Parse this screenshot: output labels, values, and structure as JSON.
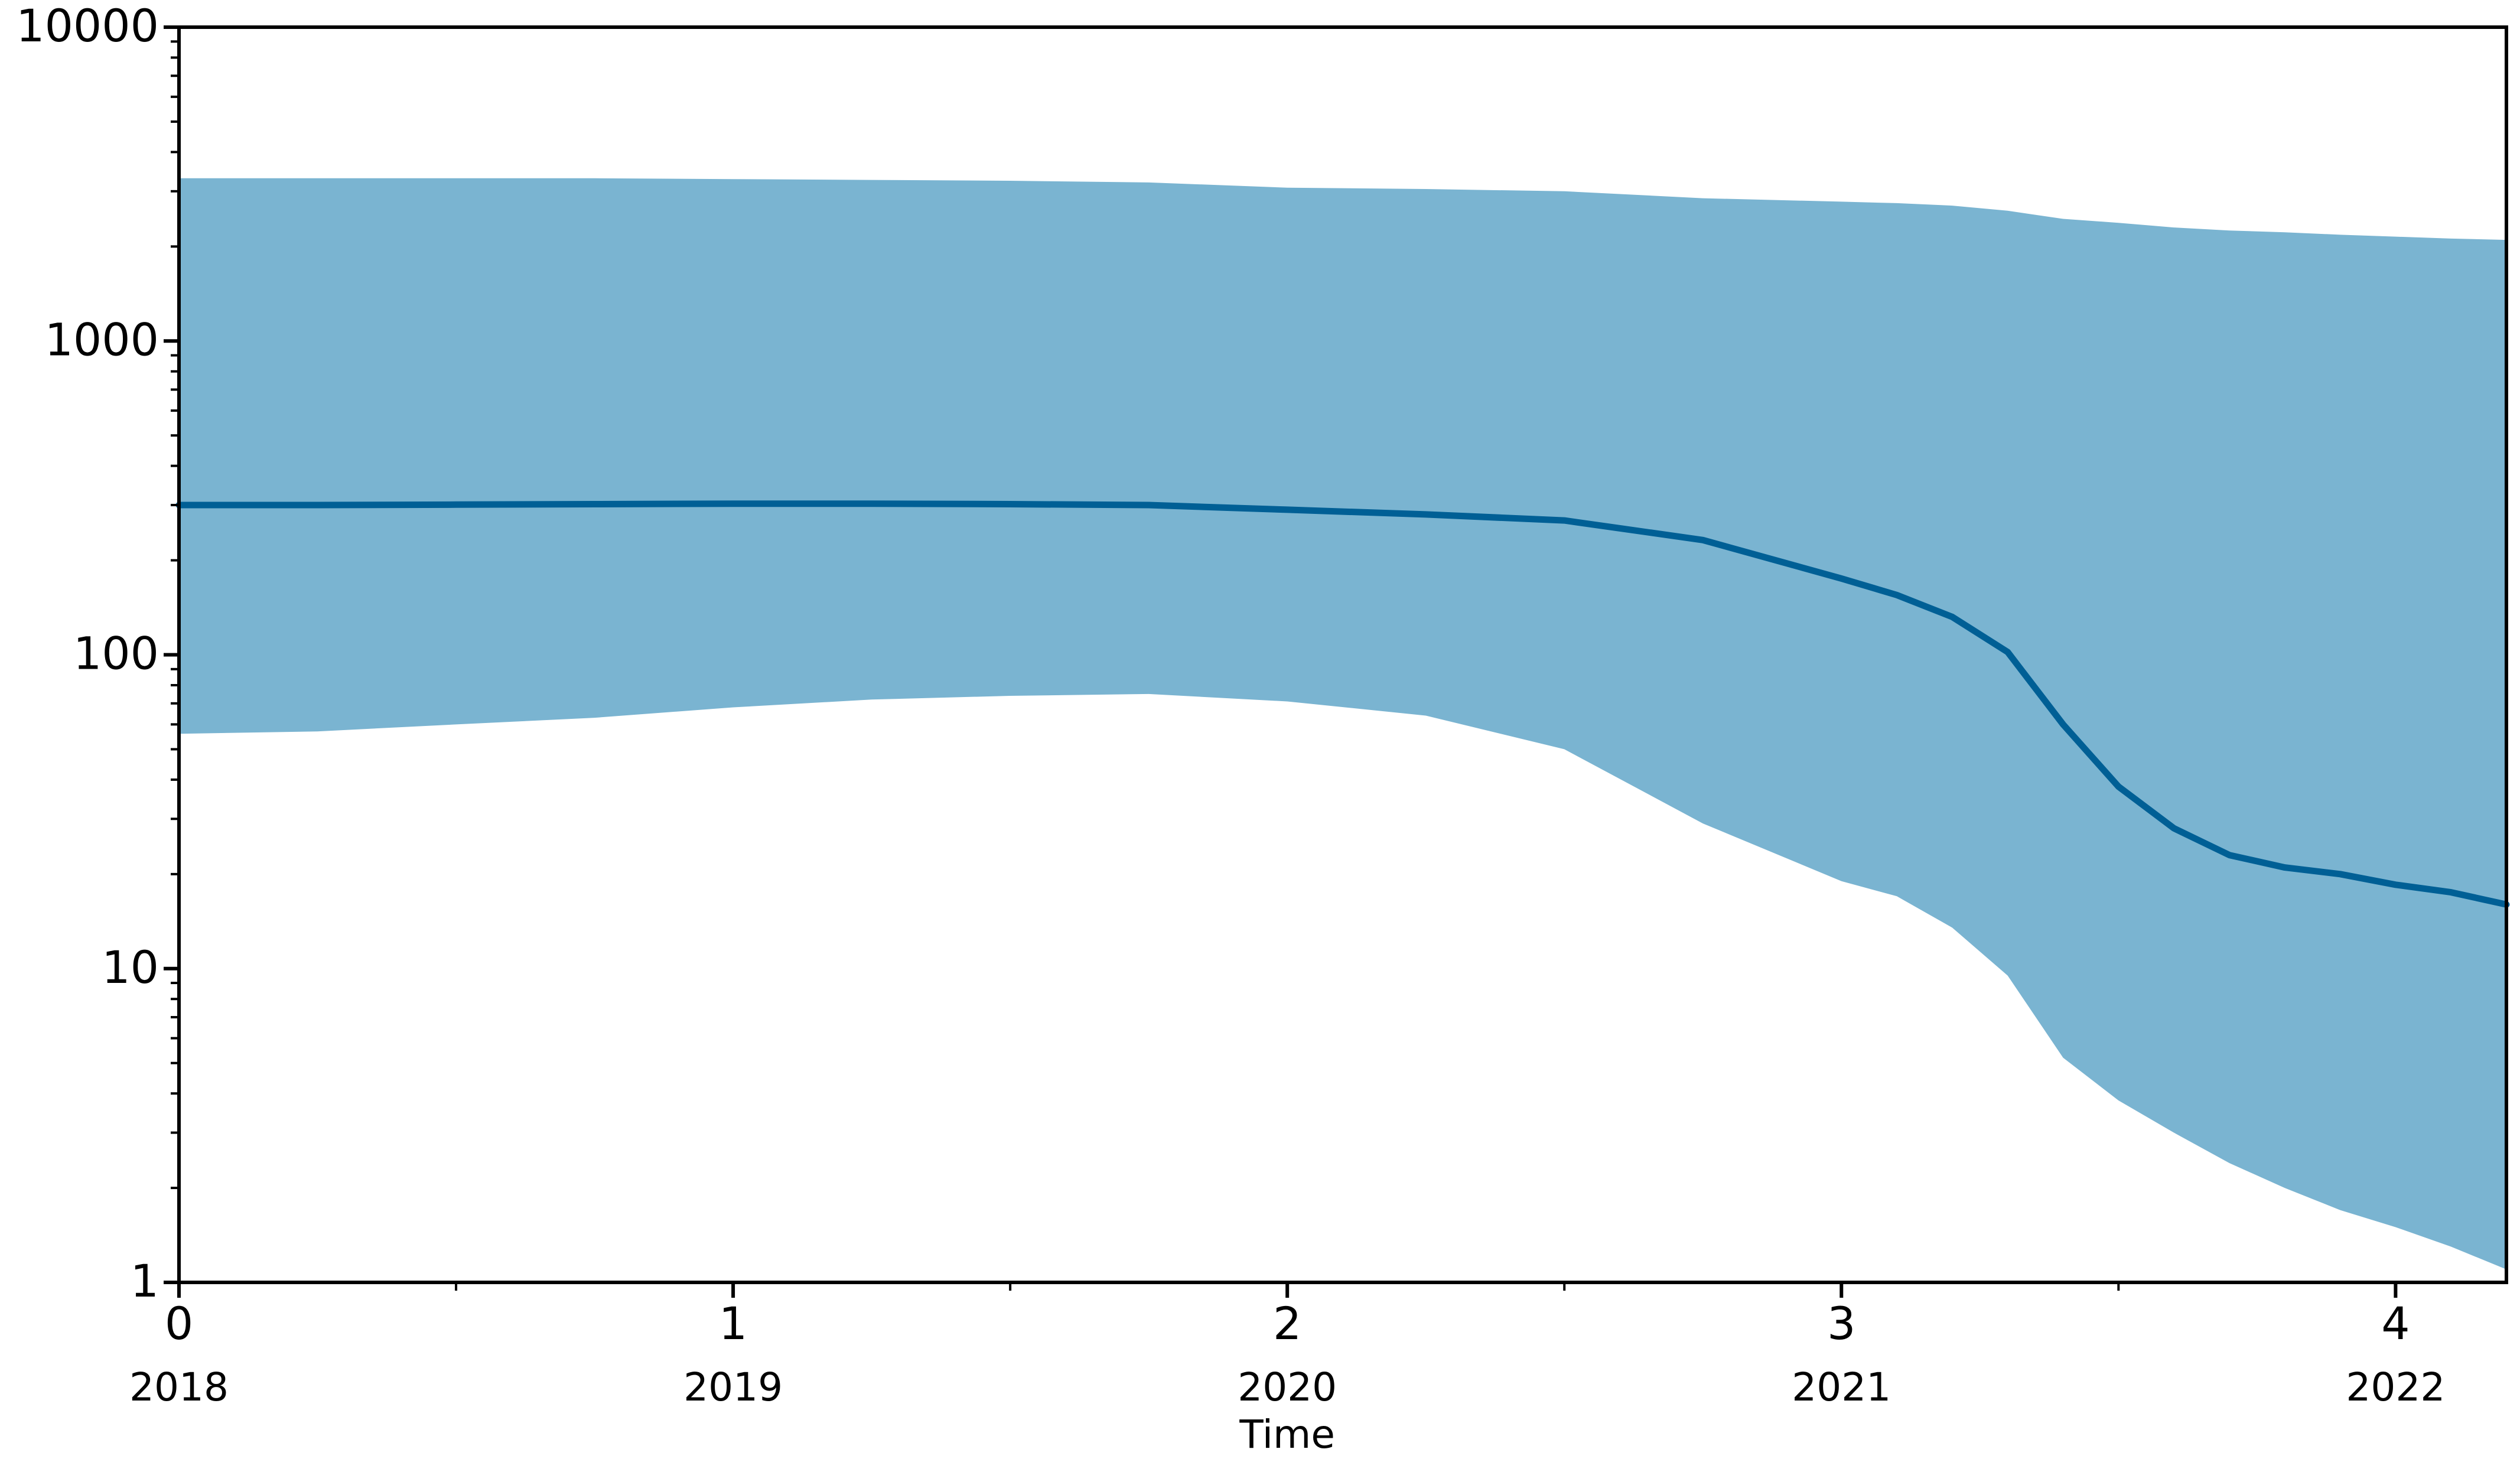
{
  "chart_data": {
    "type": "area",
    "xlabel": "Time",
    "ylabel": "",
    "y_scale": "log",
    "ylim": [
      1,
      10000
    ],
    "xlim": [
      0,
      4.2
    ],
    "grid": false,
    "legend": "none",
    "x_ticks": [
      {
        "value": 0,
        "label": "0",
        "year": "2018"
      },
      {
        "value": 1,
        "label": "1",
        "year": "2019"
      },
      {
        "value": 2,
        "label": "2",
        "year": "2020"
      },
      {
        "value": 3,
        "label": "3",
        "year": "2021"
      },
      {
        "value": 4,
        "label": "4",
        "year": "2022"
      }
    ],
    "y_ticks": [
      {
        "value": 1,
        "label": "1"
      },
      {
        "value": 10,
        "label": "10"
      },
      {
        "value": 100,
        "label": "100"
      },
      {
        "value": 1000,
        "label": "1000"
      },
      {
        "value": 10000,
        "label": "10000"
      }
    ],
    "colors": {
      "band": "#7ab4d1",
      "line": "#005f95",
      "axis": "#000000"
    },
    "series": [
      {
        "role": "median",
        "x": [
          0,
          0.25,
          0.5,
          0.75,
          1.0,
          1.25,
          1.5,
          1.75,
          2.0,
          2.25,
          2.5,
          2.75,
          3.0,
          3.1,
          3.2,
          3.3,
          3.4,
          3.5,
          3.6,
          3.7,
          3.8,
          3.9,
          4.0,
          4.1,
          4.2
        ],
        "y": [
          300,
          300,
          301,
          302,
          303,
          303,
          302,
          300,
          290,
          280,
          268,
          232,
          175,
          155,
          132,
          102,
          60,
          38,
          28,
          23,
          21,
          20,
          18.5,
          17.5,
          16
        ]
      },
      {
        "role": "upper",
        "x": [
          0,
          0.25,
          0.5,
          0.75,
          1.0,
          1.25,
          1.5,
          1.75,
          2.0,
          2.25,
          2.5,
          2.75,
          3.0,
          3.1,
          3.2,
          3.3,
          3.4,
          3.5,
          3.6,
          3.7,
          3.8,
          3.9,
          4.0,
          4.1,
          4.2
        ],
        "y": [
          3300,
          3300,
          3300,
          3300,
          3280,
          3260,
          3240,
          3200,
          3080,
          3050,
          3000,
          2850,
          2780,
          2750,
          2700,
          2600,
          2450,
          2380,
          2300,
          2250,
          2220,
          2180,
          2150,
          2120,
          2100
        ]
      },
      {
        "role": "lower",
        "x": [
          0,
          0.25,
          0.5,
          0.75,
          1.0,
          1.25,
          1.5,
          1.75,
          2.0,
          2.25,
          2.5,
          2.75,
          3.0,
          3.1,
          3.2,
          3.3,
          3.4,
          3.5,
          3.6,
          3.7,
          3.8,
          3.9,
          4.0,
          4.1,
          4.2
        ],
        "y": [
          56,
          57,
          60,
          63,
          68,
          72,
          74,
          75,
          71,
          64,
          50,
          29,
          19,
          17,
          13.5,
          9.5,
          5.2,
          3.8,
          3.0,
          2.4,
          2.0,
          1.7,
          1.5,
          1.3,
          1.1
        ]
      }
    ]
  }
}
